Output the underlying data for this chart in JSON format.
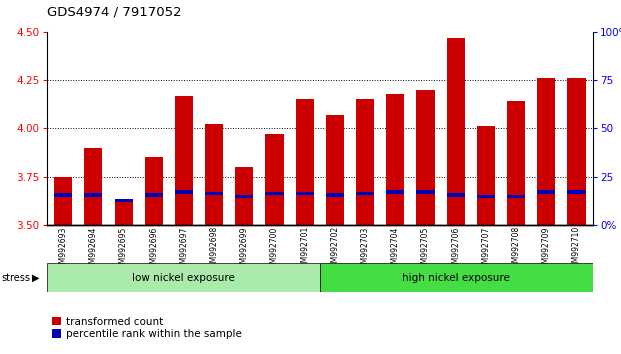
{
  "title": "GDS4974 / 7917052",
  "samples": [
    "GSM992693",
    "GSM992694",
    "GSM992695",
    "GSM992696",
    "GSM992697",
    "GSM992698",
    "GSM992699",
    "GSM992700",
    "GSM992701",
    "GSM992702",
    "GSM992703",
    "GSM992704",
    "GSM992705",
    "GSM992706",
    "GSM992707",
    "GSM992708",
    "GSM992709",
    "GSM992710"
  ],
  "red_values": [
    3.75,
    3.9,
    3.62,
    3.85,
    4.17,
    4.02,
    3.8,
    3.97,
    4.15,
    4.07,
    4.15,
    4.18,
    4.2,
    4.47,
    4.01,
    4.14,
    4.26,
    4.26
  ],
  "blue_values": [
    3.645,
    3.645,
    3.618,
    3.645,
    3.66,
    3.652,
    3.638,
    3.652,
    3.652,
    3.645,
    3.652,
    3.66,
    3.66,
    3.645,
    3.638,
    3.638,
    3.66,
    3.66
  ],
  "ylim_left": [
    3.5,
    4.5
  ],
  "ylim_right": [
    0,
    100
  ],
  "yticks_left": [
    3.5,
    3.75,
    4.0,
    4.25,
    4.5
  ],
  "yticks_right": [
    0,
    25,
    50,
    75,
    100
  ],
  "ytick_labels_right": [
    "0%",
    "25",
    "50",
    "75",
    "100%"
  ],
  "bar_bottom": 3.5,
  "bar_color_red": "#cc0000",
  "bar_color_blue": "#0000bb",
  "group1_label": "low nickel exposure",
  "group2_label": "high nickel exposure",
  "group1_color": "#aaeaaa",
  "group2_color": "#44dd44",
  "group1_count": 9,
  "stress_label": "stress",
  "legend_red": "transformed count",
  "legend_blue": "percentile rank within the sample"
}
